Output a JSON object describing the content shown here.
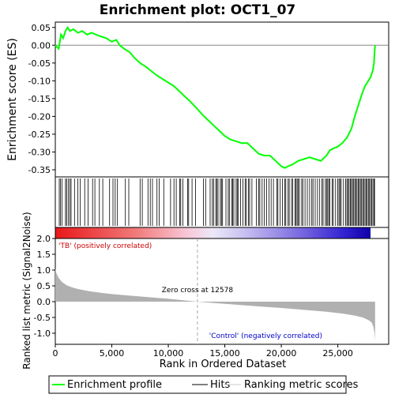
{
  "chart_data": {
    "type": "line",
    "title": "Enrichment plot: OCT1_07",
    "ylabel_top": "Enrichment score (ES)",
    "ylabel_bottom": "Ranked list metric (Signal2Noise)",
    "xlabel": "Rank in Ordered Dataset",
    "top_panel": {
      "ylim": [
        -0.37,
        0.065
      ],
      "yticks": [
        "0.05",
        "0.00",
        "-0.05",
        "-0.10",
        "-0.15",
        "-0.20",
        "-0.25",
        "-0.30",
        "-0.35"
      ],
      "ytick_values": [
        0.05,
        0.0,
        -0.05,
        -0.1,
        -0.15,
        -0.2,
        -0.25,
        -0.3,
        -0.35
      ],
      "series": [
        {
          "name": "Enrichment profile",
          "color": "#00ff00",
          "x": [
            0,
            300,
            500,
            700,
            900,
            1100,
            1300,
            1600,
            2000,
            2400,
            2800,
            3200,
            3600,
            4000,
            4500,
            5000,
            5400,
            5700,
            6100,
            6600,
            7000,
            7500,
            8000,
            8600,
            9000,
            9500,
            10000,
            10500,
            11000,
            11500,
            12000,
            12600,
            13000,
            13500,
            14000,
            14500,
            15000,
            15500,
            16000,
            16500,
            17000,
            17500,
            18000,
            18500,
            19000,
            19500,
            20000,
            20300,
            20600,
            21000,
            21500,
            22000,
            22500,
            23000,
            23500,
            24000,
            24300,
            24600,
            25000,
            25400,
            25800,
            26200,
            26500,
            26800,
            27100,
            27400,
            27700,
            27900,
            28100,
            28200,
            28250,
            28300
          ],
          "y": [
            0.0,
            -0.01,
            0.03,
            0.02,
            0.04,
            0.05,
            0.04,
            0.045,
            0.035,
            0.04,
            0.03,
            0.035,
            0.03,
            0.025,
            0.02,
            0.01,
            0.015,
            0.0,
            -0.01,
            -0.02,
            -0.035,
            -0.05,
            -0.06,
            -0.075,
            -0.085,
            -0.095,
            -0.105,
            -0.115,
            -0.13,
            -0.145,
            -0.16,
            -0.18,
            -0.195,
            -0.21,
            -0.225,
            -0.24,
            -0.255,
            -0.265,
            -0.27,
            -0.275,
            -0.275,
            -0.29,
            -0.305,
            -0.31,
            -0.31,
            -0.325,
            -0.34,
            -0.345,
            -0.34,
            -0.335,
            -0.325,
            -0.32,
            -0.315,
            -0.32,
            -0.325,
            -0.31,
            -0.295,
            -0.29,
            -0.285,
            -0.275,
            -0.26,
            -0.235,
            -0.2,
            -0.17,
            -0.14,
            -0.115,
            -0.1,
            -0.09,
            -0.07,
            -0.05,
            -0.02,
            0.0
          ]
        }
      ]
    },
    "hits_panel": {
      "hit_positions": [
        350,
        450,
        600,
        900,
        1000,
        1150,
        1300,
        1400,
        1700,
        2000,
        2200,
        2600,
        2900,
        3300,
        3500,
        3900,
        4200,
        4800,
        5100,
        5300,
        5500,
        6200,
        6500,
        7500,
        7700,
        8200,
        8400,
        8600,
        9000,
        9200,
        9600,
        10200,
        10500,
        10700,
        11000,
        11100,
        11300,
        11700,
        11800,
        12100,
        12400,
        13100,
        13300,
        13700,
        13900,
        14000,
        14200,
        14300,
        14400,
        14600,
        14700,
        14800,
        15100,
        15300,
        15400,
        15600,
        15700,
        15800,
        16000,
        16100,
        16200,
        16400,
        16600,
        16800,
        16900,
        17100,
        17200,
        17400,
        17800,
        18000,
        18100,
        18300,
        18500,
        18700,
        18900,
        19100,
        19300,
        19600,
        19700,
        19900,
        20100,
        20300,
        20400,
        20600,
        20700,
        20900,
        21000,
        21200,
        21300,
        21400,
        21500,
        21600,
        21800,
        21900,
        22100,
        22300,
        22500,
        22700,
        22800,
        23000,
        23200,
        23400,
        23600,
        23700,
        23900,
        24000,
        24100,
        24200,
        24300,
        24500,
        24600,
        24800,
        25000,
        25100,
        25200,
        25300,
        25500,
        25700,
        25800,
        25900,
        26000,
        26100,
        26200,
        26300,
        26400,
        26500,
        26600,
        26700,
        26800,
        26900,
        27000,
        27100,
        27200,
        27300,
        27400,
        27500,
        27600,
        27700,
        27800,
        27900,
        28000,
        28100,
        28200,
        28250
      ]
    },
    "bottom_panel": {
      "ylim": [
        -1.35,
        2.0
      ],
      "yticks": [
        "2.0",
        "1.5",
        "1.0",
        "0.5",
        "0.0",
        "-0.5",
        "-1.0"
      ],
      "ytick_values": [
        2.0,
        1.5,
        1.0,
        0.5,
        0.0,
        -0.5,
        -1.0
      ],
      "metric_x": [
        0,
        100,
        300,
        600,
        1000,
        1500,
        2000,
        3000,
        4000,
        5000,
        6000,
        8000,
        10000,
        12578,
        15000,
        18000,
        20000,
        22000,
        24000,
        25500,
        26500,
        27200,
        27700,
        28000,
        28150,
        28250,
        28300
      ],
      "metric_y": [
        1.05,
        0.9,
        0.75,
        0.62,
        0.52,
        0.45,
        0.4,
        0.33,
        0.28,
        0.24,
        0.21,
        0.15,
        0.09,
        0.0,
        -0.07,
        -0.15,
        -0.2,
        -0.26,
        -0.32,
        -0.38,
        -0.44,
        -0.5,
        -0.58,
        -0.66,
        -0.8,
        -1.0,
        -1.25
      ],
      "zero_cross_label": "Zero cross at 12578",
      "zero_cross": 12578,
      "pos_label": "'TB' (positively correlated)",
      "neg_label": "'Control' (negatively correlated)"
    },
    "xlim": [
      0,
      29500
    ],
    "xticks": [
      "0",
      "5,000",
      "10,000",
      "15,000",
      "20,000",
      "25,000"
    ],
    "xtick_values": [
      0,
      5000,
      10000,
      15000,
      20000,
      25000
    ],
    "n_genes": 28300,
    "legend": {
      "placement": "bottom",
      "entries": [
        "Enrichment profile",
        "Hits",
        "Ranking metric scores"
      ]
    },
    "colors": {
      "es_line": "#00ff00",
      "hits": "#000000",
      "metric_fill": "#b0b0b0",
      "pos_label": "#cc0000",
      "neg_label": "#0000cc",
      "zero_line": "#888888",
      "zero_cross_line": "#aaaaaa"
    }
  }
}
